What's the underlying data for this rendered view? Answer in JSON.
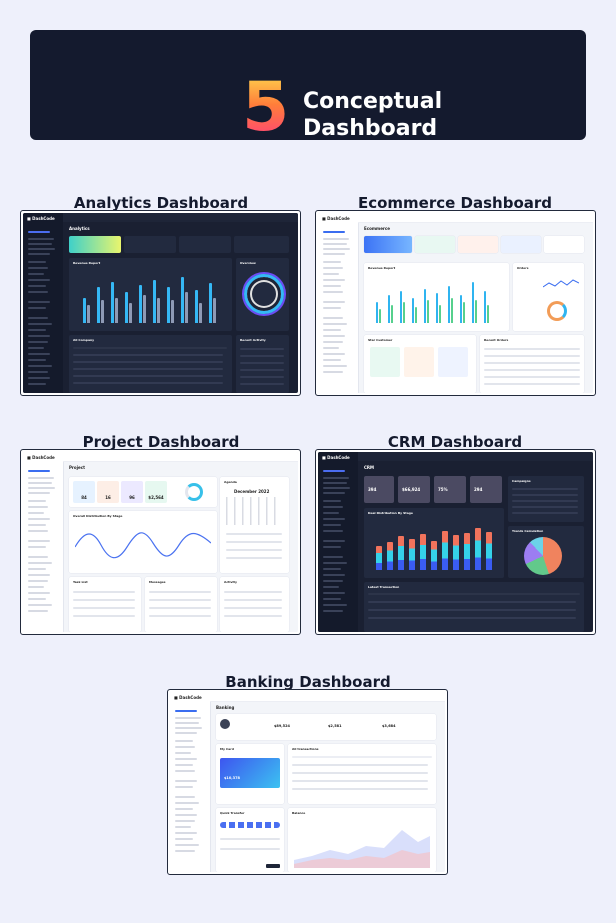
{
  "hero": {
    "number": "5",
    "title": "Conceptual Dashboard"
  },
  "sections": [
    {
      "label": "Analytics Dashboard"
    },
    {
      "label": "Ecommerce Dashboard"
    },
    {
      "label": "Project Dashboard"
    },
    {
      "label": "CRM Dashboard"
    },
    {
      "label": "Banking Dashboard"
    }
  ],
  "mini": {
    "analytics": {
      "page": "Analytics",
      "card1": "Revenue Report",
      "card2": "Overview",
      "card3": "All Company",
      "card4": "Recent Activity"
    },
    "ecommerce": {
      "page": "Ecommerce",
      "card1": "Revenue Report",
      "card2": "Orders",
      "card3": "Star Customer",
      "card4": "Recent Orders"
    },
    "project": {
      "page": "Project",
      "card1": "Overall Distribution By Stage",
      "card2": "Agenda",
      "card3": "Task List",
      "card4": "Messages",
      "card5": "Activity",
      "calendar": "December 2022",
      "stats": [
        "84",
        "16",
        "96",
        "$2,564"
      ]
    },
    "crm": {
      "page": "CRM",
      "card1": "Deal Distribution By Stage",
      "card2": "Campaigns",
      "card3": "Trends Calculation",
      "card4": "Latest Transaction",
      "stats": [
        "394",
        "$66,924",
        "75%",
        "294"
      ]
    },
    "banking": {
      "page": "Banking",
      "card1": "My Card",
      "card2": "All transactions",
      "card3": "Quick Transfer",
      "card4": "Balance",
      "card_amount": "$10,378",
      "stats": [
        "$89,524",
        "$2,581",
        "$3,684"
      ]
    }
  }
}
